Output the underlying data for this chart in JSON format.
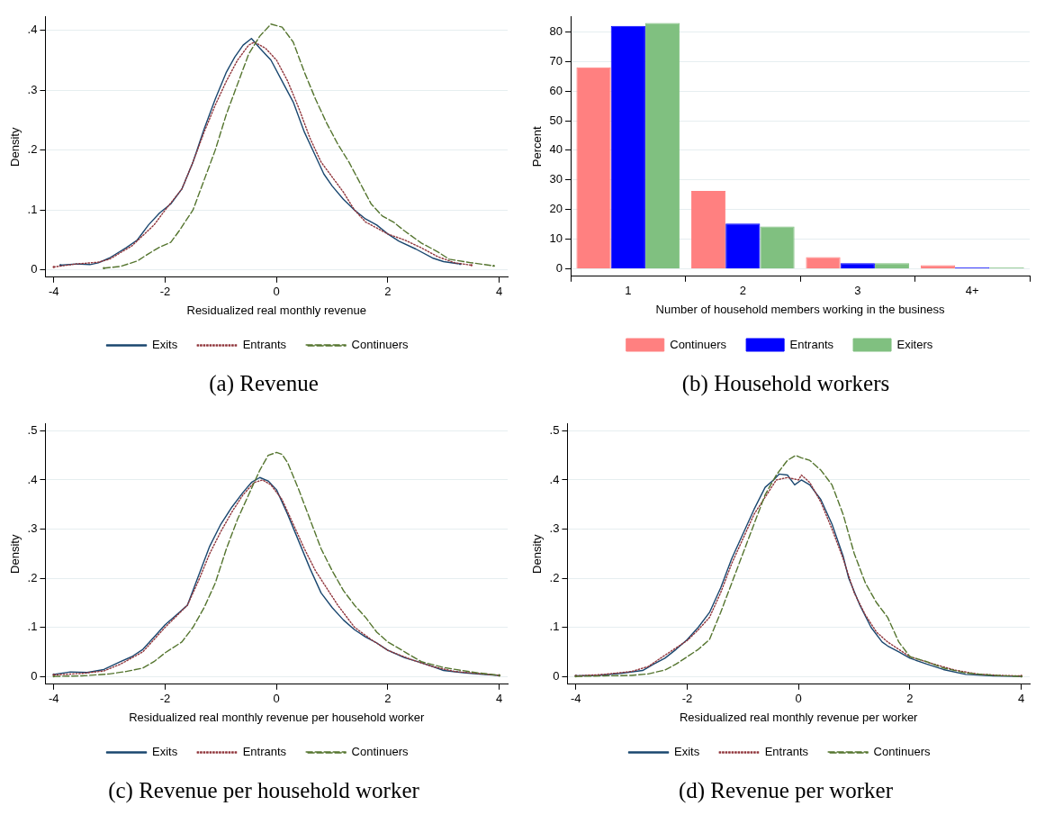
{
  "chart_data": [
    {
      "type": "line",
      "xlabel": "Residualized real monthly revenue",
      "ylabel": "Density",
      "xlim": [
        -4.15,
        4.15
      ],
      "xticks": [
        -4,
        -2,
        0,
        2,
        4
      ],
      "ylim": [
        -0.012,
        0.422
      ],
      "yticks": [
        {
          "value": 0,
          "label": "0"
        },
        {
          "value": 0.1,
          "label": ".1"
        },
        {
          "value": 0.2,
          "label": ".2"
        },
        {
          "value": 0.3,
          "label": ".3"
        },
        {
          "value": 0.4,
          "label": ".4"
        }
      ],
      "grid": "y",
      "legend": "bottom",
      "marker": "none",
      "annotations": [
        "(a) Revenue"
      ],
      "series": [
        {
          "name": "Exits",
          "color": "#1a476f",
          "line_style": "solid",
          "x": [
            -3.88,
            -3.6,
            -3.35,
            -3.2,
            -3.0,
            -2.7,
            -2.5,
            -2.3,
            -2.1,
            -1.9,
            -1.7,
            -1.5,
            -1.3,
            -1.1,
            -0.9,
            -0.75,
            -0.6,
            -0.45,
            -0.3,
            -0.1,
            0.1,
            0.3,
            0.5,
            0.7,
            0.85,
            1.0,
            1.2,
            1.4,
            1.6,
            1.8,
            2.0,
            2.2,
            2.5,
            2.8,
            3.0,
            3.3
          ],
          "values": [
            0.008,
            0.01,
            0.009,
            0.012,
            0.02,
            0.037,
            0.05,
            0.075,
            0.095,
            0.11,
            0.135,
            0.18,
            0.235,
            0.285,
            0.33,
            0.355,
            0.375,
            0.386,
            0.37,
            0.35,
            0.315,
            0.28,
            0.23,
            0.19,
            0.16,
            0.14,
            0.118,
            0.1,
            0.085,
            0.075,
            0.06,
            0.048,
            0.035,
            0.02,
            0.014,
            0.01
          ]
        },
        {
          "name": "Entrants",
          "color": "#90353b",
          "line_style": "dotted",
          "x": [
            -4,
            -3.6,
            -3.2,
            -3.0,
            -2.6,
            -2.2,
            -2.0,
            -1.7,
            -1.5,
            -1.3,
            -1.1,
            -0.9,
            -0.7,
            -0.5,
            -0.4,
            -0.2,
            0,
            0.2,
            0.4,
            0.6,
            0.8,
            1.0,
            1.2,
            1.4,
            1.6,
            1.8,
            2.0,
            2.3,
            2.6,
            2.9,
            3.2,
            3.5
          ],
          "values": [
            0.005,
            0.01,
            0.013,
            0.018,
            0.04,
            0.075,
            0.1,
            0.135,
            0.18,
            0.23,
            0.275,
            0.315,
            0.35,
            0.375,
            0.38,
            0.37,
            0.35,
            0.315,
            0.27,
            0.22,
            0.18,
            0.155,
            0.13,
            0.1,
            0.08,
            0.07,
            0.06,
            0.05,
            0.037,
            0.022,
            0.012,
            0.008
          ]
        },
        {
          "name": "Continuers",
          "color": "#55752f",
          "line_style": "dashed",
          "x": [
            -3.1,
            -2.8,
            -2.5,
            -2.3,
            -2.1,
            -1.9,
            -1.75,
            -1.5,
            -1.3,
            -1.1,
            -0.9,
            -0.7,
            -0.5,
            -0.3,
            -0.1,
            0.1,
            0.3,
            0.5,
            0.7,
            0.9,
            1.1,
            1.3,
            1.5,
            1.7,
            1.9,
            2.1,
            2.3,
            2.6,
            2.9,
            3.1,
            3.5,
            3.9
          ],
          "values": [
            0.003,
            0.006,
            0.015,
            0.027,
            0.038,
            0.046,
            0.065,
            0.1,
            0.15,
            0.2,
            0.26,
            0.31,
            0.36,
            0.39,
            0.41,
            0.405,
            0.38,
            0.33,
            0.285,
            0.245,
            0.21,
            0.18,
            0.145,
            0.11,
            0.09,
            0.08,
            0.065,
            0.045,
            0.03,
            0.018,
            0.012,
            0.007
          ]
        }
      ]
    },
    {
      "type": "bar",
      "xlabel": "Number of household members working in the business",
      "ylabel": "Percent",
      "categories": [
        "1",
        "2",
        "3",
        "4+"
      ],
      "ylim": [
        -2.5,
        85
      ],
      "yticks": [
        0,
        10,
        20,
        30,
        40,
        50,
        60,
        70,
        80
      ],
      "grid": "y",
      "legend": "bottom",
      "annotations": [
        "(b) Household workers"
      ],
      "series": [
        {
          "name": "Continuers",
          "color": "#ff8080",
          "values": [
            68,
            26.3,
            4,
            1.2
          ]
        },
        {
          "name": "Entrants",
          "color": "#0000ff",
          "values": [
            82,
            15.3,
            1.9,
            0.5
          ]
        },
        {
          "name": "Exiters",
          "color": "#80c080",
          "values": [
            83,
            14.3,
            1.9,
            0.5
          ]
        }
      ]
    },
    {
      "type": "line",
      "xlabel": "Residualized real monthly revenue per household worker",
      "ylabel": "Density",
      "xlim": [
        -4.15,
        4.15
      ],
      "xticks": [
        -4,
        -2,
        0,
        2,
        4
      ],
      "ylim": [
        -0.016,
        0.514
      ],
      "yticks": [
        {
          "value": 0,
          "label": "0"
        },
        {
          "value": 0.1,
          "label": ".1"
        },
        {
          "value": 0.2,
          "label": ".2"
        },
        {
          "value": 0.3,
          "label": ".3"
        },
        {
          "value": 0.4,
          "label": ".4"
        },
        {
          "value": 0.5,
          "label": ".5"
        }
      ],
      "grid": "y",
      "legend": "bottom",
      "marker": "none",
      "annotations": [
        "(c) Revenue per household worker"
      ],
      "series": [
        {
          "name": "Exits",
          "color": "#1a476f",
          "line_style": "solid",
          "x": [
            -4,
            -3.7,
            -3.4,
            -3.1,
            -2.8,
            -2.6,
            -2.4,
            -2.2,
            -2.0,
            -1.8,
            -1.6,
            -1.4,
            -1.2,
            -1.0,
            -0.8,
            -0.6,
            -0.45,
            -0.3,
            -0.15,
            0,
            0.2,
            0.4,
            0.6,
            0.8,
            1.0,
            1.2,
            1.4,
            1.6,
            1.8,
            2.0,
            2.3,
            2.6,
            2.8,
            3.0,
            3.4,
            3.7,
            4
          ],
          "values": [
            0.004,
            0.009,
            0.008,
            0.014,
            0.03,
            0.04,
            0.055,
            0.08,
            0.105,
            0.125,
            0.145,
            0.205,
            0.265,
            0.31,
            0.345,
            0.375,
            0.395,
            0.405,
            0.398,
            0.38,
            0.33,
            0.275,
            0.22,
            0.17,
            0.14,
            0.115,
            0.095,
            0.08,
            0.068,
            0.053,
            0.038,
            0.028,
            0.02,
            0.012,
            0.007,
            0.004,
            0.002
          ]
        },
        {
          "name": "Entrants",
          "color": "#90353b",
          "line_style": "dotted",
          "x": [
            -4,
            -3.5,
            -3.1,
            -2.8,
            -2.4,
            -2.0,
            -1.6,
            -1.4,
            -1.2,
            -1.0,
            -0.8,
            -0.6,
            -0.4,
            -0.25,
            -0.1,
            0.1,
            0.3,
            0.5,
            0.7,
            0.9,
            1.1,
            1.4,
            1.7,
            2.0,
            2.4,
            2.8,
            3.2,
            3.6,
            4
          ],
          "values": [
            0.003,
            0.006,
            0.011,
            0.025,
            0.05,
            0.1,
            0.145,
            0.195,
            0.25,
            0.295,
            0.335,
            0.37,
            0.395,
            0.4,
            0.39,
            0.36,
            0.31,
            0.26,
            0.215,
            0.18,
            0.145,
            0.1,
            0.075,
            0.053,
            0.035,
            0.02,
            0.01,
            0.006,
            0.002
          ]
        },
        {
          "name": "Continuers",
          "color": "#55752f",
          "line_style": "dashed",
          "x": [
            -4,
            -3.5,
            -3.0,
            -2.7,
            -2.4,
            -2.2,
            -2.0,
            -1.7,
            -1.5,
            -1.3,
            -1.1,
            -0.9,
            -0.7,
            -0.5,
            -0.3,
            -0.15,
            0,
            0.1,
            0.2,
            0.4,
            0.6,
            0.8,
            1.0,
            1.2,
            1.4,
            1.6,
            1.8,
            2.0,
            2.3,
            2.6,
            3.0,
            3.5,
            4
          ],
          "values": [
            0,
            0.001,
            0.005,
            0.01,
            0.017,
            0.03,
            0.048,
            0.07,
            0.1,
            0.14,
            0.19,
            0.26,
            0.32,
            0.37,
            0.42,
            0.45,
            0.456,
            0.452,
            0.435,
            0.38,
            0.32,
            0.26,
            0.215,
            0.175,
            0.145,
            0.12,
            0.09,
            0.07,
            0.05,
            0.03,
            0.018,
            0.009,
            0.002
          ]
        }
      ]
    },
    {
      "type": "line",
      "xlabel": "Residualized real monthly revenue per worker",
      "ylabel": "Density",
      "xlim": [
        -4.15,
        4.15
      ],
      "xticks": [
        -4,
        -2,
        0,
        2,
        4
      ],
      "ylim": [
        -0.016,
        0.514
      ],
      "yticks": [
        {
          "value": 0,
          "label": "0"
        },
        {
          "value": 0.1,
          "label": ".1"
        },
        {
          "value": 0.2,
          "label": ".2"
        },
        {
          "value": 0.3,
          "label": ".3"
        },
        {
          "value": 0.4,
          "label": ".4"
        },
        {
          "value": 0.5,
          "label": ".5"
        }
      ],
      "grid": "y",
      "legend": "bottom",
      "marker": "none",
      "annotations": [
        "(d) Revenue per worker"
      ],
      "series": [
        {
          "name": "Exits",
          "color": "#1a476f",
          "line_style": "solid",
          "x": [
            -4,
            -3.6,
            -3.2,
            -2.8,
            -2.6,
            -2.4,
            -2.2,
            -2.0,
            -1.8,
            -1.6,
            -1.4,
            -1.2,
            -1.0,
            -0.8,
            -0.6,
            -0.45,
            -0.35,
            -0.2,
            -0.07,
            0.05,
            0.2,
            0.4,
            0.6,
            0.8,
            0.9,
            1.1,
            1.3,
            1.5,
            1.6,
            1.8,
            2.0,
            2.3,
            2.6,
            3.0,
            3.5,
            4
          ],
          "values": [
            0.001,
            0.002,
            0.006,
            0.012,
            0.025,
            0.037,
            0.055,
            0.075,
            0.1,
            0.13,
            0.18,
            0.24,
            0.29,
            0.34,
            0.385,
            0.4,
            0.412,
            0.41,
            0.39,
            0.4,
            0.39,
            0.36,
            0.31,
            0.245,
            0.2,
            0.145,
            0.1,
            0.07,
            0.062,
            0.05,
            0.037,
            0.025,
            0.014,
            0.004,
            0.001,
            0
          ]
        },
        {
          "name": "Entrants",
          "color": "#90353b",
          "line_style": "dotted",
          "x": [
            -4,
            -3.5,
            -3.0,
            -2.7,
            -2.4,
            -2.0,
            -1.8,
            -1.6,
            -1.4,
            -1.2,
            -1.0,
            -0.8,
            -0.6,
            -0.4,
            -0.2,
            0,
            0.05,
            0.2,
            0.4,
            0.6,
            0.8,
            1.0,
            1.2,
            1.4,
            1.6,
            1.8,
            2.0,
            2.4,
            2.8,
            3.2,
            3.6,
            4
          ],
          "values": [
            0.001,
            0.004,
            0.01,
            0.02,
            0.043,
            0.073,
            0.095,
            0.12,
            0.17,
            0.23,
            0.28,
            0.33,
            0.365,
            0.4,
            0.405,
            0.4,
            0.41,
            0.395,
            0.355,
            0.3,
            0.24,
            0.17,
            0.125,
            0.09,
            0.07,
            0.055,
            0.04,
            0.026,
            0.013,
            0.005,
            0.002,
            0.001
          ]
        },
        {
          "name": "Continuers",
          "color": "#55752f",
          "line_style": "dashed",
          "x": [
            -4,
            -3.5,
            -3.0,
            -2.7,
            -2.4,
            -2.2,
            -2.0,
            -1.8,
            -1.6,
            -1.4,
            -1.2,
            -1.0,
            -0.8,
            -0.6,
            -0.4,
            -0.2,
            -0.05,
            0.05,
            0.2,
            0.4,
            0.6,
            0.8,
            1.0,
            1.2,
            1.4,
            1.6,
            1.8,
            2.0,
            2.3,
            2.6,
            3.0,
            3.5,
            4
          ],
          "values": [
            0,
            0.001,
            0.002,
            0.005,
            0.013,
            0.025,
            0.04,
            0.055,
            0.075,
            0.13,
            0.19,
            0.25,
            0.31,
            0.37,
            0.41,
            0.44,
            0.45,
            0.445,
            0.44,
            0.42,
            0.39,
            0.33,
            0.25,
            0.19,
            0.15,
            0.12,
            0.07,
            0.04,
            0.03,
            0.017,
            0.007,
            0.002,
            0
          ]
        }
      ]
    }
  ]
}
